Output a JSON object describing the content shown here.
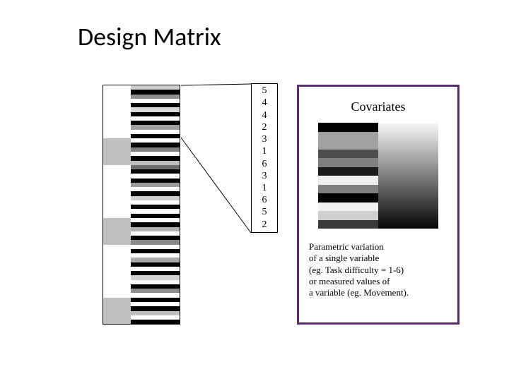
{
  "title": "Design Matrix",
  "design_matrix": {
    "col1_colors": [
      "#ffffff",
      "#ffffff",
      "#ffffff",
      "#ffffff",
      "#ffffff",
      "#ffffff",
      "#ffffff",
      "#ffffff",
      "#ffffff",
      "#ffffff",
      "#ffffff",
      "#ffffff",
      "#bfbfbf",
      "#bfbfbf",
      "#bfbfbf",
      "#bfbfbf",
      "#bfbfbf",
      "#bfbfbf",
      "#ffffff",
      "#ffffff",
      "#ffffff",
      "#ffffff",
      "#ffffff",
      "#ffffff",
      "#ffffff",
      "#ffffff",
      "#ffffff",
      "#ffffff",
      "#ffffff",
      "#ffffff",
      "#bfbfbf",
      "#bfbfbf",
      "#bfbfbf",
      "#bfbfbf",
      "#bfbfbf",
      "#bfbfbf",
      "#ffffff",
      "#ffffff",
      "#ffffff",
      "#ffffff",
      "#ffffff",
      "#ffffff",
      "#ffffff",
      "#ffffff",
      "#ffffff",
      "#ffffff",
      "#ffffff",
      "#ffffff",
      "#bfbfbf",
      "#bfbfbf",
      "#bfbfbf",
      "#bfbfbf",
      "#bfbfbf",
      "#bfbfbf"
    ],
    "col2_colors": [
      "#cfcfcf",
      "#000000",
      "#8e8e8e",
      "#ffffff",
      "#000000",
      "#d9d9d9",
      "#000000",
      "#ffffff",
      "#000000",
      "#a0a0a0",
      "#ffffff",
      "#000000",
      "#ffffff",
      "#000000",
      "#7f7f7f",
      "#ffffff",
      "#000000",
      "#bfbfbf",
      "#6f6f6f",
      "#000000",
      "#ffffff",
      "#000000",
      "#9c9c9c",
      "#ffffff",
      "#000000",
      "#cfcfcf",
      "#ffffff",
      "#000000",
      "#ffffff",
      "#000000",
      "#ffffff",
      "#000000",
      "#b0b0b0",
      "#ffffff",
      "#000000",
      "#8a8a8a",
      "#ffffff",
      "#000000",
      "#ffffff",
      "#a8a8a8",
      "#000000",
      "#ffffff",
      "#000000",
      "#d0d0d0",
      "#ffffff",
      "#000000",
      "#8c8c8c",
      "#ffffff",
      "#000000",
      "#ffffff",
      "#000000",
      "#bfbfbf",
      "#ffffff",
      "#000000"
    ]
  },
  "numbers": [
    "5",
    "4",
    "4",
    "2",
    "3",
    "1",
    "6",
    "3",
    "1",
    "6",
    "5",
    "2"
  ],
  "covariates": {
    "heading": "Covariates",
    "colA_colors": [
      "#000000",
      "#a0a0a0",
      "#a0a0a0",
      "#4d4d4d",
      "#808080",
      "#1a1a1a",
      "#f0f0f0",
      "#808080",
      "#000000",
      "#f0f0f0",
      "#cfcfcf",
      "#3a3a3a"
    ],
    "description_lines": [
      "Parametric variation",
      "of a single variable",
      "(eg. Task difficulty = 1-6)",
      "or measured values of",
      "a variable (eg. Movement)."
    ]
  },
  "colors": {
    "panel_border": "#5a2d6e",
    "background": "#ffffff"
  }
}
